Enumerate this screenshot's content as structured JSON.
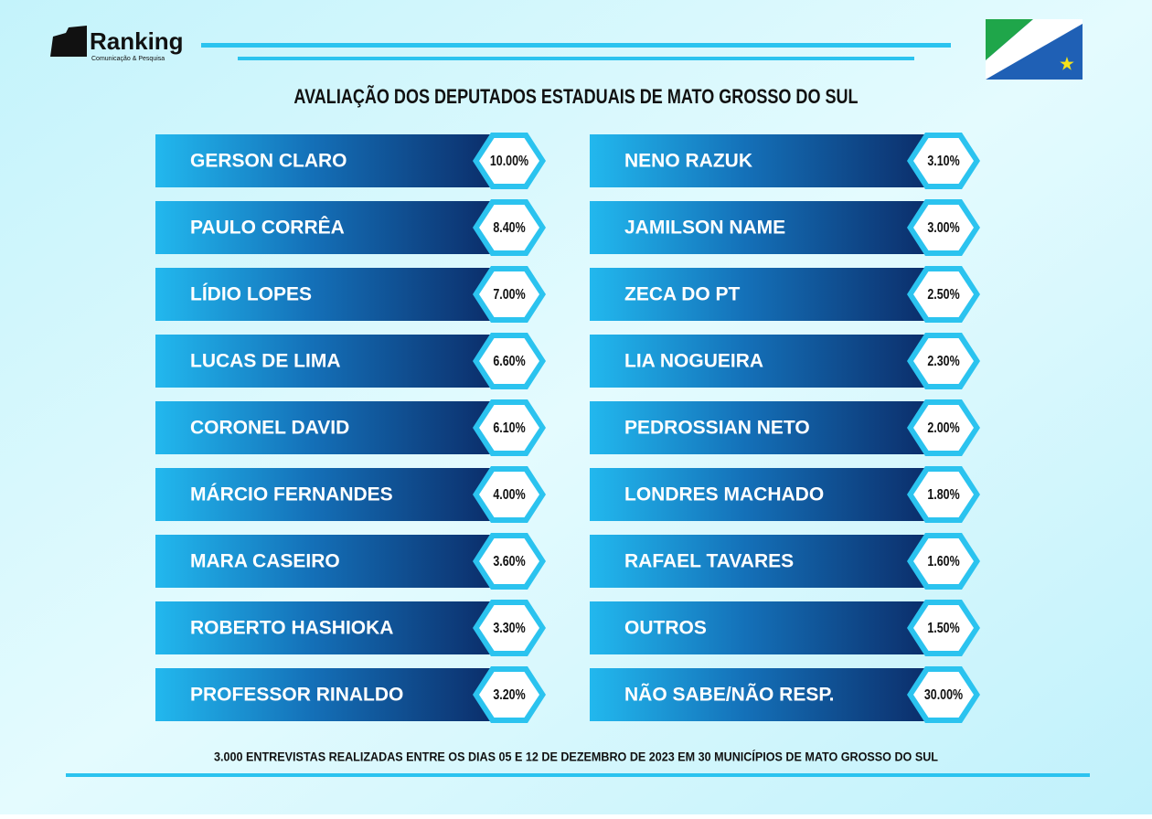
{
  "header": {
    "logo_name": "Ranking",
    "logo_tagline": "Comunicação & Pesquisa",
    "title": "AVALIAÇÃO DOS DEPUTADOS ESTADUAIS DE MATO GROSSO DO SUL"
  },
  "columns": [
    [
      {
        "name": "GERSON CLARO",
        "value": "10.00%"
      },
      {
        "name": "PAULO CORRÊA",
        "value": "8.40%"
      },
      {
        "name": "LÍDIO LOPES",
        "value": "7.00%"
      },
      {
        "name": "LUCAS DE LIMA",
        "value": "6.60%"
      },
      {
        "name": "CORONEL DAVID",
        "value": "6.10%"
      },
      {
        "name": "MÁRCIO FERNANDES",
        "value": "4.00%"
      },
      {
        "name": "MARA CASEIRO",
        "value": "3.60%"
      },
      {
        "name": "ROBERTO HASHIOKA",
        "value": "3.30%"
      },
      {
        "name": "PROFESSOR RINALDO",
        "value": "3.20%"
      }
    ],
    [
      {
        "name": "NENO RAZUK",
        "value": "3.10%"
      },
      {
        "name": "JAMILSON NAME",
        "value": "3.00%"
      },
      {
        "name": "ZECA DO PT",
        "value": "2.50%"
      },
      {
        "name": "LIA NOGUEIRA",
        "value": "2.30%"
      },
      {
        "name": "PEDROSSIAN NETO",
        "value": "2.00%"
      },
      {
        "name": "LONDRES MACHADO",
        "value": "1.80%"
      },
      {
        "name": "RAFAEL TAVARES",
        "value": "1.60%"
      },
      {
        "name": "OUTROS",
        "value": "1.50%"
      },
      {
        "name": "NÃO SABE/NÃO RESP.",
        "value": "30.00%"
      }
    ]
  ],
  "footer": "3.000 ENTREVISTAS REALIZADAS ENTRE OS DIAS 05 E 12 DE DEZEMBRO DE 2023 EM 30 MUNICÍPIOS DE MATO GROSSO DO SUL"
}
